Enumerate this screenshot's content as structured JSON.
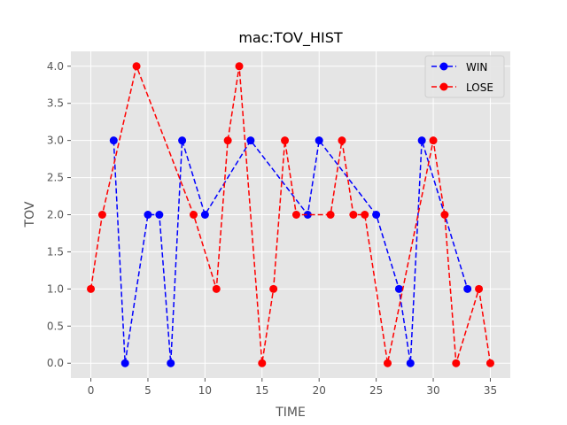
{
  "chart_data": {
    "type": "line",
    "title": "mac:TOV_HIST",
    "xlabel": "TIME",
    "ylabel": "TOV",
    "xlim": [
      -1.75,
      36.75
    ],
    "ylim": [
      -0.2,
      4.2
    ],
    "xticks": [
      0,
      5,
      10,
      15,
      20,
      25,
      30,
      35
    ],
    "yticks": [
      0.0,
      0.5,
      1.0,
      1.5,
      2.0,
      2.5,
      3.0,
      3.5,
      4.0
    ],
    "ytick_labels": [
      "0.0",
      "0.5",
      "1.0",
      "1.5",
      "2.0",
      "2.5",
      "3.0",
      "3.5",
      "4.0"
    ],
    "grid": true,
    "legend_position": "top-right",
    "series": [
      {
        "name": "WIN",
        "color": "#0000ff",
        "linestyle": "dashed",
        "marker": "circle",
        "x": [
          2,
          3,
          5,
          6,
          7,
          8,
          10,
          14,
          19,
          20,
          25,
          27,
          28,
          29,
          33
        ],
        "y": [
          3,
          0,
          2,
          2,
          0,
          3,
          2,
          3,
          2,
          3,
          2,
          1,
          0,
          3,
          1
        ]
      },
      {
        "name": "LOSE",
        "color": "#ff0000",
        "linestyle": "dashed",
        "marker": "circle",
        "x": [
          0,
          1,
          4,
          9,
          11,
          12,
          13,
          15,
          16,
          17,
          18,
          21,
          22,
          23,
          24,
          26,
          30,
          31,
          32,
          34,
          35
        ],
        "y": [
          1,
          2,
          4,
          2,
          1,
          3,
          4,
          0,
          1,
          3,
          2,
          2,
          3,
          2,
          2,
          0,
          3,
          2,
          0,
          1,
          0
        ]
      }
    ]
  },
  "style": {
    "plot_background": "#e5e5e5",
    "grid_color": "#ffffff",
    "text_color": "#555555"
  }
}
